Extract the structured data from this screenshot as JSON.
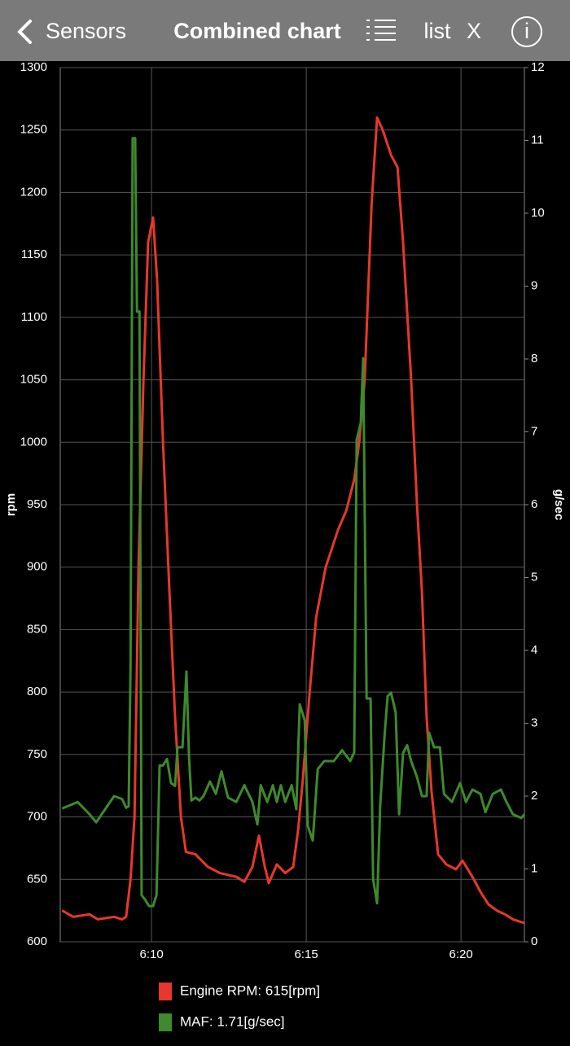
{
  "header": {
    "back": "Sensors",
    "title": "Combined chart",
    "list": "list",
    "close": "X",
    "info": "i"
  },
  "chart_data": {
    "type": "line",
    "ylabel": "rpm",
    "y2label": "g/sec",
    "xlim": [
      367.05,
      382.05
    ],
    "xticks": [
      {
        "value": 370,
        "label": "6:10"
      },
      {
        "value": 375,
        "label": "6:15"
      },
      {
        "value": 380,
        "label": "6:20"
      }
    ],
    "ylim": [
      600,
      1300
    ],
    "yticks": [
      600,
      650,
      700,
      750,
      800,
      850,
      900,
      950,
      1000,
      1050,
      1100,
      1150,
      1200,
      1250,
      1300
    ],
    "y2lim": [
      0,
      12
    ],
    "y2ticks": [
      0,
      1,
      2,
      3,
      4,
      5,
      6,
      7,
      8,
      9,
      10,
      11,
      12
    ],
    "grid": true,
    "series": [
      {
        "name": "Engine RPM: 615[rpm]",
        "color": "#e8372c",
        "x": [
          367.11,
          367.47,
          368.0,
          368.26,
          368.79,
          369.05,
          369.18,
          369.32,
          369.45,
          369.58,
          369.74,
          369.89,
          370.05,
          370.18,
          370.37,
          370.58,
          370.76,
          370.95,
          371.11,
          371.42,
          371.82,
          372.21,
          372.74,
          373.0,
          373.26,
          373.47,
          373.66,
          373.79,
          374.05,
          374.32,
          374.58,
          374.74,
          374.89,
          375.11,
          375.32,
          375.63,
          376.03,
          376.29,
          376.55,
          376.71,
          376.89,
          377.11,
          377.29,
          377.47,
          377.74,
          377.95,
          378.13,
          378.39,
          378.58,
          378.74,
          378.89,
          379.05,
          379.26,
          379.53,
          379.84,
          380.05,
          380.37,
          380.63,
          380.89,
          381.16,
          381.42,
          381.68,
          382.05
        ],
        "values": [
          625,
          620,
          622,
          618,
          620,
          618,
          620,
          650,
          700,
          900,
          1050,
          1160,
          1180,
          1130,
          1000,
          880,
          780,
          700,
          672,
          670,
          660,
          655,
          652,
          648,
          660,
          685,
          660,
          647,
          662,
          655,
          660,
          690,
          730,
          800,
          860,
          900,
          930,
          945,
          970,
          1000,
          1050,
          1190,
          1260,
          1250,
          1230,
          1220,
          1160,
          1050,
          950,
          880,
          780,
          720,
          670,
          662,
          658,
          665,
          652,
          640,
          630,
          625,
          622,
          618,
          615
        ]
      },
      {
        "name": "MAF: 1.71[g/sec]",
        "color": "#3e8a2c",
        "axis": "y2",
        "x": [
          367.11,
          367.61,
          368.0,
          368.21,
          368.39,
          368.79,
          369.05,
          369.18,
          369.26,
          369.32,
          369.39,
          369.47,
          369.53,
          369.61,
          369.68,
          369.79,
          369.92,
          370.05,
          370.16,
          370.26,
          370.37,
          370.5,
          370.63,
          370.76,
          370.84,
          371.0,
          371.13,
          371.21,
          371.29,
          371.42,
          371.55,
          371.68,
          371.89,
          372.08,
          372.26,
          372.47,
          372.74,
          373.0,
          373.26,
          373.42,
          373.53,
          373.74,
          373.92,
          374.05,
          374.18,
          374.32,
          374.53,
          374.68,
          374.79,
          374.95,
          375.05,
          375.21,
          375.37,
          375.58,
          375.89,
          376.16,
          376.42,
          376.55,
          376.63,
          376.76,
          376.84,
          376.95,
          377.08,
          377.16,
          377.29,
          377.39,
          377.53,
          377.63,
          377.74,
          377.89,
          378.0,
          378.13,
          378.26,
          378.39,
          378.58,
          378.74,
          378.89,
          378.97,
          379.13,
          379.32,
          379.45,
          379.71,
          379.97,
          380.16,
          380.37,
          380.63,
          380.79,
          381.03,
          381.29,
          381.47,
          381.68,
          381.95,
          382.05
        ],
        "values": [
          1.83,
          1.92,
          1.75,
          1.64,
          1.75,
          2.0,
          1.96,
          1.84,
          1.86,
          3.77,
          11.03,
          11.03,
          8.65,
          8.65,
          0.64,
          0.58,
          0.49,
          0.49,
          0.64,
          2.42,
          2.42,
          2.51,
          2.18,
          2.14,
          2.67,
          2.67,
          3.71,
          2.54,
          1.94,
          1.98,
          1.94,
          2.0,
          2.2,
          2.03,
          2.34,
          1.98,
          1.92,
          2.15,
          1.92,
          1.61,
          2.15,
          1.92,
          2.15,
          1.92,
          2.15,
          1.92,
          2.15,
          1.82,
          3.26,
          3.04,
          1.59,
          1.39,
          2.37,
          2.48,
          2.48,
          2.63,
          2.48,
          2.6,
          6.89,
          7.12,
          8.01,
          3.34,
          3.34,
          0.86,
          0.53,
          1.87,
          2.82,
          3.37,
          3.42,
          3.15,
          1.75,
          2.59,
          2.7,
          2.48,
          2.26,
          2.0,
          2.0,
          2.87,
          2.67,
          2.67,
          2.03,
          1.92,
          2.18,
          1.92,
          2.09,
          2.03,
          1.78,
          2.03,
          2.09,
          1.92,
          1.75,
          1.7,
          1.75
        ]
      }
    ]
  }
}
